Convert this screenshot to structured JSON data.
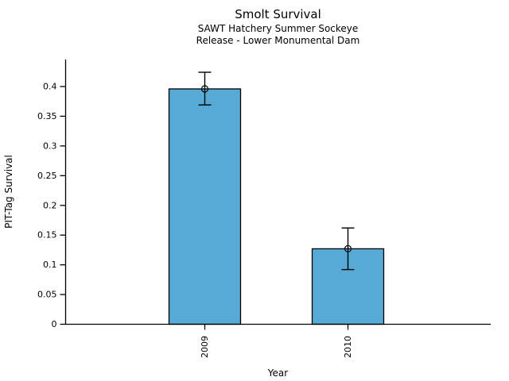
{
  "chart_data": {
    "type": "bar",
    "title": "Smolt Survival",
    "subtitle": [
      "SAWT Hatchery Summer Sockeye",
      "Release - Lower Monumental Dam"
    ],
    "categories": [
      "2009",
      "2010"
    ],
    "values": [
      0.396,
      0.127
    ],
    "error_low": [
      0.369,
      0.092
    ],
    "error_high": [
      0.424,
      0.162
    ],
    "xlabel": "Year",
    "ylabel": "PIT-Tag Survival",
    "yticks": [
      0,
      0.05,
      0.1,
      0.15,
      0.2,
      0.25,
      0.3,
      0.35,
      0.4
    ],
    "ytick_labels": [
      "0",
      "0.05",
      "0.1",
      "0.15",
      "0.2",
      "0.25",
      "0.3",
      "0.35",
      "0.4"
    ],
    "ylim": [
      0,
      0.45
    ],
    "xtick_label_rotation": 90,
    "grid": false,
    "legend": null,
    "marker": "open-circle",
    "bar_color": "#58AAD6",
    "bar_edge_color": "#000000",
    "error_bar_color": "#000000",
    "axis_color": "#000000",
    "background_color": "#ffffff"
  }
}
